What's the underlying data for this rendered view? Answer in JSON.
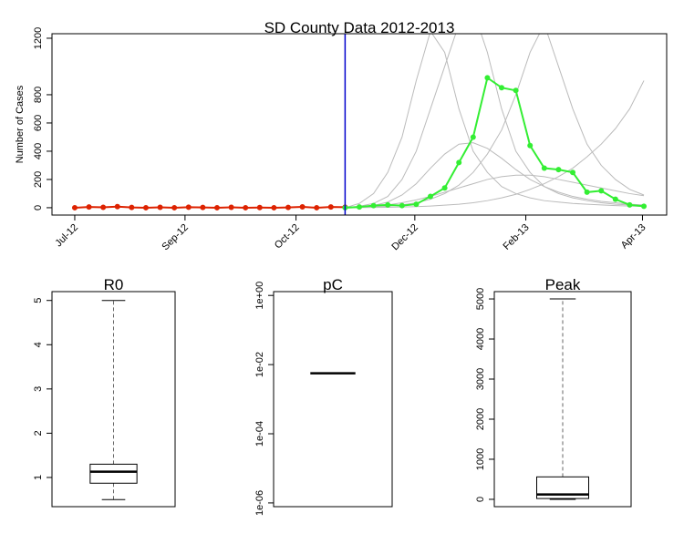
{
  "chart_data": [
    {
      "type": "line",
      "title": "SD County Data 2012-2013",
      "ylabel": "Number of Cases",
      "x": [
        0,
        1,
        2,
        3,
        4,
        5,
        6,
        7,
        8,
        9,
        10,
        11,
        12,
        13,
        14,
        15,
        16,
        17,
        18,
        19,
        20,
        21,
        22,
        23,
        24,
        25,
        26,
        27,
        28,
        29,
        30,
        31,
        32,
        33,
        34,
        35,
        36,
        37,
        38,
        39,
        40
      ],
      "xlim": [
        -1.6,
        41.6
      ],
      "xticks": [
        {
          "value": 0,
          "label": "Jul-12"
        },
        {
          "value": 7.75,
          "label": "Sep-12"
        },
        {
          "value": 15.55,
          "label": "Oct-12"
        },
        {
          "value": 23.9,
          "label": "Dec-12"
        },
        {
          "value": 31.7,
          "label": "Feb-13"
        },
        {
          "value": 39.9,
          "label": "Apr-13"
        }
      ],
      "ylim": [
        -52,
        1232
      ],
      "yticks": [
        0,
        200,
        400,
        600,
        800,
        1200
      ],
      "vline": 19,
      "vline_color": "#0000cc",
      "series": [
        {
          "color": "#bbbbbb",
          "values": [
            null,
            null,
            null,
            null,
            null,
            null,
            null,
            null,
            null,
            null,
            null,
            null,
            null,
            null,
            null,
            null,
            null,
            null,
            null,
            0,
            30,
            100,
            250,
            500,
            900,
            1250,
            1100,
            700,
            400,
            250,
            150,
            100,
            70,
            50,
            40,
            30,
            25,
            20,
            15,
            12,
            10
          ]
        },
        {
          "color": "#bbbbbb",
          "values": [
            null,
            null,
            null,
            null,
            null,
            null,
            null,
            null,
            null,
            null,
            null,
            null,
            null,
            null,
            null,
            null,
            null,
            null,
            null,
            0,
            10,
            30,
            80,
            200,
            400,
            700,
            1000,
            1300,
            1400,
            1100,
            700,
            400,
            250,
            150,
            100,
            70,
            50,
            35,
            25,
            20,
            15
          ]
        },
        {
          "color": "#bbbbbb",
          "values": [
            null,
            null,
            null,
            null,
            null,
            null,
            null,
            null,
            null,
            null,
            null,
            null,
            null,
            null,
            null,
            null,
            null,
            null,
            null,
            0,
            5,
            15,
            40,
            90,
            170,
            280,
            380,
            450,
            460,
            420,
            350,
            270,
            200,
            150,
            110,
            80,
            60,
            45,
            35,
            25,
            20
          ]
        },
        {
          "color": "#bbbbbb",
          "values": [
            null,
            null,
            null,
            null,
            null,
            null,
            null,
            null,
            null,
            null,
            null,
            null,
            null,
            null,
            null,
            null,
            null,
            null,
            null,
            0,
            2,
            5,
            10,
            20,
            35,
            60,
            100,
            160,
            250,
            380,
            550,
            800,
            1100,
            1300,
            1000,
            700,
            450,
            300,
            200,
            130,
            90
          ]
        },
        {
          "color": "#bbbbbb",
          "values": [
            null,
            null,
            null,
            null,
            null,
            null,
            null,
            null,
            null,
            null,
            null,
            null,
            null,
            null,
            null,
            null,
            null,
            null,
            null,
            0,
            5,
            10,
            20,
            35,
            55,
            80,
            110,
            140,
            170,
            200,
            220,
            230,
            230,
            220,
            200,
            180,
            160,
            140,
            120,
            100,
            85
          ]
        },
        {
          "color": "#bbbbbb",
          "values": [
            null,
            null,
            null,
            null,
            null,
            null,
            null,
            null,
            null,
            null,
            null,
            null,
            null,
            null,
            null,
            null,
            null,
            null,
            null,
            0,
            1,
            2,
            3,
            5,
            8,
            12,
            18,
            25,
            35,
            50,
            70,
            95,
            130,
            170,
            220,
            280,
            360,
            450,
            560,
            700,
            900
          ]
        },
        {
          "color": "#dd2200",
          "points": true,
          "values": [
            0,
            5,
            3,
            8,
            2,
            0,
            3,
            0,
            4,
            2,
            0,
            3,
            0,
            1,
            0,
            2,
            6,
            0,
            5,
            4,
            null,
            null,
            null,
            null,
            null,
            null,
            null,
            null,
            null,
            null,
            null,
            null,
            null,
            null,
            null,
            null,
            null,
            null,
            null,
            null,
            null
          ]
        },
        {
          "color": "#33ee33",
          "points": true,
          "values": [
            null,
            null,
            null,
            null,
            null,
            null,
            null,
            null,
            null,
            null,
            null,
            null,
            null,
            null,
            null,
            null,
            null,
            null,
            null,
            0,
            5,
            15,
            20,
            15,
            25,
            80,
            140,
            320,
            500,
            920,
            850,
            830,
            440,
            280,
            270,
            250,
            110,
            120,
            60,
            20,
            10
          ]
        }
      ]
    },
    {
      "type": "box",
      "title": "R0",
      "ylim": [
        0.34,
        5.2
      ],
      "yticks": [
        1,
        2,
        3,
        4,
        5
      ],
      "min": 0.5,
      "q1": 0.87,
      "median": 1.13,
      "q3": 1.3,
      "max": 5.0
    },
    {
      "type": "box",
      "title": "pC",
      "log": true,
      "ylim": [
        7.8e-07,
        1.29
      ],
      "yticks": [
        {
          "value": 1e-06,
          "label": "1e-06"
        },
        {
          "value": 0.0001,
          "label": "1e-04"
        },
        {
          "value": 0.01,
          "label": "1e-02"
        },
        {
          "value": 1,
          "label": "1e+00"
        }
      ],
      "min": 0.0056,
      "q1": 0.0056,
      "median": 0.0056,
      "q3": 0.0056,
      "max": 0.0056
    },
    {
      "type": "box",
      "title": "Peak",
      "ylim": [
        -183,
        5183
      ],
      "yticks": [
        0,
        1000,
        2000,
        3000,
        4000,
        5000
      ],
      "min": 0,
      "q1": 20,
      "median": 120,
      "q3": 560,
      "max": 5000
    }
  ]
}
